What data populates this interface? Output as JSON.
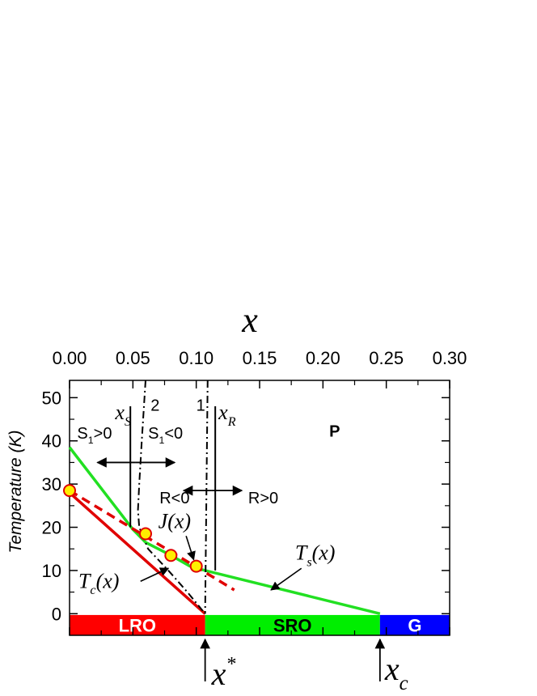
{
  "chart_data": {
    "type": "line",
    "x_axis": {
      "label": "x",
      "position": "top",
      "range": [
        0.0,
        0.3
      ],
      "ticks": [
        "0.00",
        "0.05",
        "0.10",
        "0.15",
        "0.20",
        "0.25",
        "0.30"
      ]
    },
    "y_axis": {
      "label": "Temperature (K)",
      "range": [
        -5,
        54
      ],
      "ticks": [
        "0",
        "10",
        "20",
        "30",
        "40",
        "50"
      ]
    },
    "series": [
      {
        "name": "T_c(x)",
        "color": "#e00000",
        "style": "solid",
        "points": [
          [
            0.0,
            28
          ],
          [
            0.107,
            0
          ]
        ]
      },
      {
        "name": "T_s(x)",
        "color": "#22e022",
        "style": "solid",
        "points": [
          [
            0.0,
            38.5
          ],
          [
            0.05,
            19.5
          ],
          [
            0.06,
            16.5
          ],
          [
            0.08,
            13.5
          ],
          [
            0.095,
            11
          ],
          [
            0.107,
            10
          ],
          [
            0.245,
            0
          ]
        ]
      },
      {
        "name": "J(x)",
        "color": "#e00000",
        "style": "dashed",
        "points": [
          [
            0.0,
            28.5
          ],
          [
            0.13,
            5.5
          ]
        ]
      },
      {
        "name": "curve-2",
        "color": "#000000",
        "style": "dash-dot",
        "points": [
          [
            0.06,
            54
          ],
          [
            0.057,
            40
          ],
          [
            0.055,
            30
          ],
          [
            0.054,
            24
          ],
          [
            0.055,
            20
          ],
          [
            0.062,
            15
          ],
          [
            0.078,
            10
          ],
          [
            0.093,
            5
          ],
          [
            0.107,
            0
          ]
        ]
      },
      {
        "name": "curve-1",
        "color": "#000000",
        "style": "dash-dot",
        "points": [
          [
            0.109,
            54
          ],
          [
            0.107,
            0
          ]
        ]
      }
    ],
    "markers": {
      "color": "#ffee00",
      "edge_color": "#e00000",
      "points": [
        [
          0.0,
          28.5
        ],
        [
          0.06,
          18.5
        ],
        [
          0.08,
          13.5
        ],
        [
          0.1,
          11
        ]
      ]
    },
    "vertical_lines": [
      {
        "x": 0.048,
        "y_range": [
          20,
          48
        ]
      },
      {
        "x": 0.115,
        "y_range": [
          10,
          48
        ]
      }
    ],
    "bands": [
      {
        "label": "LRO",
        "x_range": [
          0.0,
          0.107
        ],
        "color": "#ff0000",
        "text_color": "#ffffff"
      },
      {
        "label": "SRO",
        "x_range": [
          0.107,
          0.245
        ],
        "color": "#00ee00",
        "text_color": "#000000"
      },
      {
        "label": "G",
        "x_range": [
          0.245,
          0.3
        ],
        "color": "#0000ff",
        "text_color": "#ffffff"
      }
    ],
    "annotations": {
      "xs": {
        "main": "x",
        "sub": "S"
      },
      "xr": {
        "main": "x",
        "sub": "R"
      },
      "label_1": "1",
      "label_2": "2",
      "s1_pos": {
        "main": "S",
        "sub": "1",
        "rest": ">0"
      },
      "s1_neg": {
        "main": "S",
        "sub": "1",
        "rest": "<0"
      },
      "r_neg": "R<0",
      "r_pos": "R>0",
      "phase_p": "P",
      "tc_label": {
        "main": "T",
        "sub": "c",
        "rest": "(x)"
      },
      "ts_label": {
        "main": "T",
        "sub": "s",
        "rest": "(x)"
      },
      "j_label": "J(x)",
      "x_star": {
        "main": "x",
        "sup": "*",
        "x": 0.107
      },
      "x_c": {
        "main": "x",
        "sub": "c",
        "x": 0.245
      }
    }
  }
}
